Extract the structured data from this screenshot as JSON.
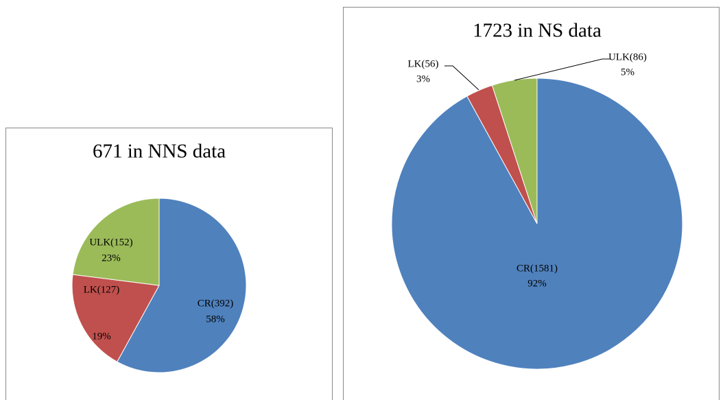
{
  "chart_data": [
    {
      "type": "pie",
      "title": "671 in NNS data",
      "categories": [
        "CR(392)",
        "LK(127)",
        "ULK(152)"
      ],
      "values": [
        58,
        19,
        23
      ],
      "value_labels": [
        "58%",
        "19%",
        "23%"
      ],
      "colors": [
        "#4f81bd",
        "#c0504d",
        "#9bbb59"
      ]
    },
    {
      "type": "pie",
      "title": "1723 in NS data",
      "categories": [
        "CR(1581)",
        "LK(56)",
        "ULK(86)"
      ],
      "values": [
        92,
        3,
        5
      ],
      "value_labels": [
        "92%",
        "3%",
        "5%"
      ],
      "colors": [
        "#4f81bd",
        "#c0504d",
        "#9bbb59"
      ]
    }
  ]
}
